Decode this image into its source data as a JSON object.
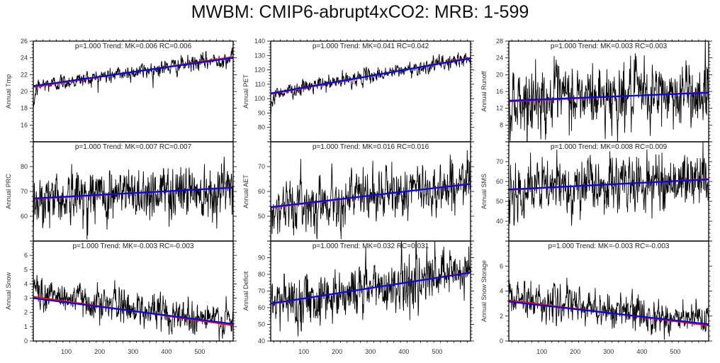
{
  "title": "MWBM: CMIP6-abrupt4xCO2: MRB: 1-599",
  "chart_data": [
    {
      "type": "line",
      "title": "p=1.000 Trend: MK=0.006 RC=0.006",
      "ylabel": "Annual Tmp",
      "xlabel": "",
      "xlim": [
        1,
        599
      ],
      "xticks": [
        100,
        200,
        300,
        400,
        500
      ],
      "ylim": [
        14,
        26
      ],
      "yticks": [
        16,
        18,
        20,
        22,
        24,
        26
      ],
      "series": [
        {
          "name": "annual series",
          "color": "#000000",
          "start": 17.5,
          "spinup_to": 20.4,
          "trend_start": 20.6,
          "trend_end": 24.0,
          "noise": 0.45
        },
        {
          "name": "trend RC",
          "color": "#ff0000",
          "x": [
            1,
            599
          ],
          "y": [
            20.55,
            24.1
          ]
        },
        {
          "name": "trend MK",
          "color": "#0000ff",
          "x": [
            1,
            599
          ],
          "y": [
            20.65,
            24.0
          ]
        }
      ]
    },
    {
      "type": "line",
      "title": "p=1.000 Trend: MK=0.041 RC=0.042",
      "ylabel": "Annual PET",
      "xlabel": "",
      "xlim": [
        1,
        599
      ],
      "xticks": [
        100,
        200,
        300,
        400,
        500
      ],
      "ylim": [
        70,
        140
      ],
      "yticks": [
        80,
        90,
        100,
        110,
        120,
        130,
        140
      ],
      "series": [
        {
          "name": "annual series",
          "color": "#000000",
          "start": 88,
          "spinup_to": 102,
          "trend_start": 103.5,
          "trend_end": 128,
          "noise": 2.4
        },
        {
          "name": "trend RC",
          "color": "#ff0000",
          "x": [
            1,
            599
          ],
          "y": [
            103.3,
            128.3
          ]
        },
        {
          "name": "trend MK",
          "color": "#0000ff",
          "x": [
            1,
            599
          ],
          "y": [
            103.7,
            128.0
          ]
        }
      ]
    },
    {
      "type": "line",
      "title": "p=1.000 Trend: MK=0.003 RC=0.003",
      "ylabel": "Annual Runoff",
      "xlabel": "",
      "xlim": [
        1,
        599
      ],
      "xticks": [
        100,
        200,
        300,
        400,
        500
      ],
      "ylim": [
        4,
        28
      ],
      "yticks": [
        8,
        12,
        16,
        20,
        24,
        28
      ],
      "series": [
        {
          "name": "annual series",
          "color": "#000000",
          "start": 13.7,
          "spinup_to": 13.7,
          "trend_start": 13.8,
          "trend_end": 15.7,
          "noise": 3.6
        },
        {
          "name": "trend RC",
          "color": "#ff0000",
          "x": [
            1,
            599
          ],
          "y": [
            13.6,
            15.8
          ]
        },
        {
          "name": "trend MK",
          "color": "#0000ff",
          "x": [
            1,
            599
          ],
          "y": [
            13.8,
            15.7
          ]
        }
      ]
    },
    {
      "type": "line",
      "title": "p=1.000 Trend: MK=0.007 RC=0.007",
      "ylabel": "Annual PRC",
      "xlabel": "",
      "xlim": [
        1,
        599
      ],
      "xticks": [
        100,
        200,
        300,
        400,
        500
      ],
      "ylim": [
        50,
        90
      ],
      "yticks": [
        60,
        70,
        80
      ],
      "series": [
        {
          "name": "annual series",
          "color": "#000000",
          "start": 62,
          "spinup_to": 67,
          "trend_start": 67.2,
          "trend_end": 71.5,
          "noise": 5.2
        },
        {
          "name": "trend RC",
          "color": "#ff0000",
          "x": [
            1,
            599
          ],
          "y": [
            67.0,
            71.6
          ]
        },
        {
          "name": "trend MK",
          "color": "#0000ff",
          "x": [
            1,
            599
          ],
          "y": [
            67.2,
            71.5
          ]
        }
      ]
    },
    {
      "type": "line",
      "title": "p=1.000 Trend: MK=0.016 RC=0.016",
      "ylabel": "Annual AET",
      "xlabel": "",
      "xlim": [
        1,
        599
      ],
      "xticks": [
        100,
        200,
        300,
        400,
        500
      ],
      "ylim": [
        40,
        80
      ],
      "yticks": [
        50,
        60,
        70
      ],
      "series": [
        {
          "name": "annual series",
          "color": "#000000",
          "start": 48,
          "spinup_to": 53.5,
          "trend_start": 53.7,
          "trend_end": 63.0,
          "noise": 4.8
        },
        {
          "name": "trend RC",
          "color": "#ff0000",
          "x": [
            1,
            599
          ],
          "y": [
            53.5,
            63.1
          ]
        },
        {
          "name": "trend MK",
          "color": "#0000ff",
          "x": [
            1,
            599
          ],
          "y": [
            53.7,
            63.0
          ]
        }
      ]
    },
    {
      "type": "line",
      "title": "p=1.000 Trend: MK=0.008 RC=0.009",
      "ylabel": "Annual SMS",
      "xlabel": "",
      "xlim": [
        1,
        599
      ],
      "xticks": [
        100,
        200,
        300,
        400,
        500
      ],
      "ylim": [
        30,
        80
      ],
      "yticks": [
        40,
        50,
        60,
        70
      ],
      "series": [
        {
          "name": "annual series",
          "color": "#000000",
          "start": 52,
          "spinup_to": 55,
          "trend_start": 56.0,
          "trend_end": 61.0,
          "noise": 6.5
        },
        {
          "name": "trend RC",
          "color": "#ff0000",
          "x": [
            1,
            599
          ],
          "y": [
            55.8,
            61.2
          ]
        },
        {
          "name": "trend MK",
          "color": "#0000ff",
          "x": [
            1,
            599
          ],
          "y": [
            56.0,
            61.0
          ]
        }
      ]
    },
    {
      "type": "line",
      "title": "p=1.000 Trend: MK=-0.003 RC=-0.003",
      "ylabel": "Annual Snow",
      "xlabel": "",
      "xlim": [
        1,
        599
      ],
      "xticks": [
        100,
        200,
        300,
        400,
        500
      ],
      "ylim": [
        0,
        7
      ],
      "yticks": [
        0,
        1,
        2,
        3,
        4,
        5,
        6
      ],
      "series": [
        {
          "name": "annual series",
          "color": "#000000",
          "start": 5.2,
          "spinup_to": 3.6,
          "trend_start": 3.4,
          "trend_end": 1.3,
          "noise": 0.55
        },
        {
          "name": "trend RC",
          "color": "#ff0000",
          "x": [
            1,
            599
          ],
          "y": [
            3.1,
            1.1
          ]
        },
        {
          "name": "trend MK",
          "color": "#0000ff",
          "x": [
            1,
            599
          ],
          "y": [
            3.0,
            1.2
          ]
        }
      ]
    },
    {
      "type": "line",
      "title": "p=1.000 Trend: MK=0.032 RC=0.031",
      "ylabel": "Annual Deficit",
      "xlabel": "",
      "xlim": [
        1,
        599
      ],
      "xticks": [
        100,
        200,
        300,
        400,
        500
      ],
      "ylim": [
        40,
        100
      ],
      "yticks": [
        40,
        50,
        60,
        70,
        80,
        90
      ],
      "series": [
        {
          "name": "annual series",
          "color": "#000000",
          "start": 55,
          "spinup_to": 62,
          "trend_start": 62.5,
          "trend_end": 81.0,
          "noise": 7.5
        },
        {
          "name": "trend RC",
          "color": "#ff0000",
          "x": [
            1,
            599
          ],
          "y": [
            62.3,
            81.2
          ]
        },
        {
          "name": "trend MK",
          "color": "#0000ff",
          "x": [
            1,
            599
          ],
          "y": [
            62.5,
            81.0
          ]
        }
      ]
    },
    {
      "type": "line",
      "title": "p=1.000 Trend: MK=-0.003 RC=-0.003",
      "ylabel": "Annual Snow Storage",
      "xlabel": "",
      "xlim": [
        1,
        599
      ],
      "xticks": [
        100,
        200,
        300,
        400,
        500
      ],
      "ylim": [
        0,
        8
      ],
      "yticks": [
        0,
        2,
        4,
        6
      ],
      "series": [
        {
          "name": "annual series",
          "color": "#000000",
          "start": 4.6,
          "spinup_to": 3.6,
          "trend_start": 3.5,
          "trend_end": 1.5,
          "noise": 0.65
        },
        {
          "name": "trend RC",
          "color": "#ff0000",
          "x": [
            1,
            599
          ],
          "y": [
            3.25,
            1.25
          ]
        },
        {
          "name": "trend MK",
          "color": "#0000ff",
          "x": [
            1,
            599
          ],
          "y": [
            3.15,
            1.35
          ]
        }
      ]
    }
  ]
}
